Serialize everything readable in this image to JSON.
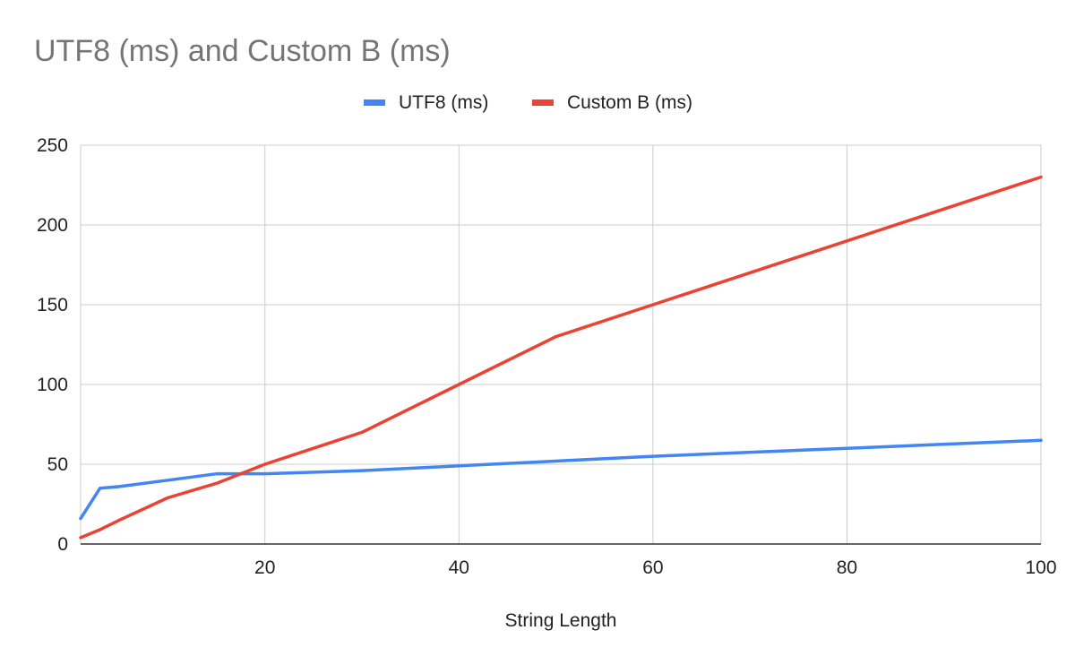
{
  "chart_data": {
    "type": "line",
    "title": "UTF8 (ms) and Custom B (ms)",
    "xlabel": "String Length",
    "ylabel": "",
    "xlim": [
      1,
      100
    ],
    "ylim": [
      0,
      250
    ],
    "x_ticks": [
      20,
      40,
      60,
      80,
      100
    ],
    "y_ticks": [
      0,
      50,
      100,
      150,
      200,
      250
    ],
    "grid": true,
    "legend_position": "top-center",
    "series": [
      {
        "name": "UTF8 (ms)",
        "color": "#4285f4",
        "points": [
          [
            1,
            16
          ],
          [
            3,
            35
          ],
          [
            5,
            36
          ],
          [
            10,
            40
          ],
          [
            15,
            44
          ],
          [
            20,
            44
          ],
          [
            30,
            46
          ],
          [
            40,
            49
          ],
          [
            50,
            52
          ],
          [
            60,
            55
          ],
          [
            80,
            60
          ],
          [
            100,
            65
          ]
        ]
      },
      {
        "name": "Custom B (ms)",
        "color": "#ea4335",
        "points": [
          [
            1,
            4
          ],
          [
            3,
            9
          ],
          [
            5,
            15
          ],
          [
            10,
            29
          ],
          [
            15,
            38
          ],
          [
            20,
            50
          ],
          [
            30,
            70
          ],
          [
            40,
            100
          ],
          [
            50,
            130
          ],
          [
            60,
            150
          ],
          [
            80,
            190
          ],
          [
            100,
            230
          ]
        ]
      }
    ]
  }
}
